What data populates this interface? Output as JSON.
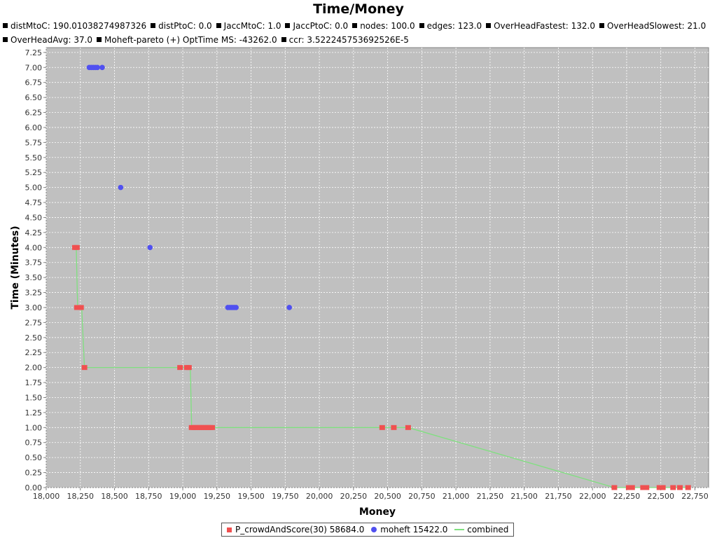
{
  "chart_data": {
    "type": "scatter",
    "title": "Time/Money",
    "subtitles": [
      "distMtoC: 190.01038274987326",
      "distPtoC: 0.0",
      "JaccMtoC: 1.0",
      "JaccPtoC: 0.0",
      "nodes: 100.0",
      "edges: 123.0",
      "OverHeadFastest: 132.0",
      "OverHeadSlowest: 21.0",
      "OverHeadAvg: 37.0",
      "Moheft-pareto (+) OptTime MS: -43262.0",
      "ccr: 3.522245753692526E-5"
    ],
    "xlabel": "Money",
    "ylabel": "Time (Minutes)",
    "xlim": [
      18000,
      22850
    ],
    "ylim": [
      0,
      7.33
    ],
    "xticks": [
      "18,000",
      "18,250",
      "18,500",
      "18,750",
      "19,000",
      "19,250",
      "19,500",
      "19,750",
      "20,000",
      "20,250",
      "20,500",
      "20,750",
      "21,000",
      "21,250",
      "21,500",
      "21,750",
      "22,000",
      "22,250",
      "22,500",
      "22,750"
    ],
    "yticks": [
      "0.00",
      "0.25",
      "0.50",
      "0.75",
      "1.00",
      "1.25",
      "1.50",
      "1.75",
      "2.00",
      "2.25",
      "2.50",
      "2.75",
      "3.00",
      "3.25",
      "3.50",
      "3.75",
      "4.00",
      "4.25",
      "4.50",
      "4.75",
      "5.00",
      "5.25",
      "5.50",
      "5.75",
      "6.00",
      "6.25",
      "6.50",
      "6.75",
      "7.00",
      "7.25"
    ],
    "grid": true,
    "legend_position": "bottom",
    "colors": {
      "plot_bg": "#c0c0c0",
      "grid": "#ffffff",
      "series_crowd": "#f05050",
      "series_moheft": "#5050f0",
      "series_combined": "#7fe07f"
    },
    "series": [
      {
        "name": "P_crowdAndScore(30) 58684.0",
        "marker": "square",
        "points": [
          [
            18210,
            4
          ],
          [
            18225,
            4
          ],
          [
            18225,
            3
          ],
          [
            18240,
            3
          ],
          [
            18255,
            3
          ],
          [
            18280,
            2
          ],
          [
            18980,
            2
          ],
          [
            19030,
            2
          ],
          [
            19045,
            2
          ],
          [
            19065,
            1
          ],
          [
            19080,
            1
          ],
          [
            19095,
            1
          ],
          [
            19110,
            1
          ],
          [
            19125,
            1
          ],
          [
            19140,
            1
          ],
          [
            19155,
            1
          ],
          [
            19170,
            1
          ],
          [
            19185,
            1
          ],
          [
            19200,
            1
          ],
          [
            19215,
            1
          ],
          [
            20460,
            1
          ],
          [
            20545,
            1
          ],
          [
            20650,
            1
          ],
          [
            22160,
            0
          ],
          [
            22265,
            0
          ],
          [
            22290,
            0
          ],
          [
            22370,
            0
          ],
          [
            22395,
            0
          ],
          [
            22490,
            0
          ],
          [
            22515,
            0
          ],
          [
            22590,
            0
          ],
          [
            22640,
            0
          ],
          [
            22700,
            0
          ]
        ]
      },
      {
        "name": "moheft 15422.0",
        "marker": "circle",
        "points": [
          [
            18315,
            7
          ],
          [
            18330,
            7
          ],
          [
            18345,
            7
          ],
          [
            18360,
            7
          ],
          [
            18375,
            7
          ],
          [
            18410,
            7
          ],
          [
            18545,
            5
          ],
          [
            18760,
            4
          ],
          [
            19330,
            3
          ],
          [
            19345,
            3
          ],
          [
            19360,
            3
          ],
          [
            19375,
            3
          ],
          [
            19390,
            3
          ],
          [
            19780,
            3
          ]
        ]
      },
      {
        "name": "combined",
        "marker": "line",
        "points": [
          [
            18220,
            4
          ],
          [
            18230,
            3
          ],
          [
            18260,
            3
          ],
          [
            18280,
            2
          ],
          [
            19055,
            2
          ],
          [
            19065,
            1
          ],
          [
            20650,
            1
          ],
          [
            22160,
            0
          ],
          [
            22700,
            0
          ]
        ]
      }
    ]
  }
}
